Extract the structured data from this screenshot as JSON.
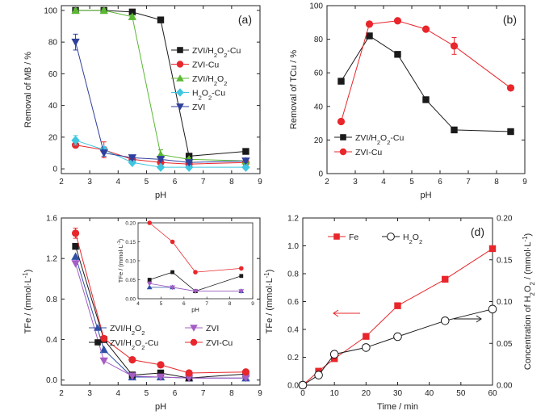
{
  "chart_data": [
    {
      "id": "a",
      "type": "line",
      "panel_label": "(a)",
      "xlabel": "pH",
      "ylabel": "Removal of MB / %",
      "xlim": [
        2,
        9
      ],
      "ylim": [
        -3,
        103
      ],
      "xticks": [
        2,
        3,
        4,
        5,
        6,
        7,
        8,
        9
      ],
      "yticks": [
        0,
        20,
        40,
        60,
        80,
        100
      ],
      "legend_position": "right-center",
      "series": [
        {
          "name": "ZVI/H₂O₂-Cu",
          "color": "#1a1a1a",
          "marker": "square",
          "x": [
            2.5,
            3.5,
            4.5,
            5.5,
            6.5,
            8.5
          ],
          "y": [
            100,
            100,
            99,
            94,
            8,
            11
          ]
        },
        {
          "name": "ZVI-Cu",
          "color": "#e8262b",
          "marker": "circle",
          "x": [
            2.5,
            3.5,
            4.5,
            5.5,
            6.5,
            8.5
          ],
          "y": [
            15,
            12,
            6,
            4,
            3,
            4
          ],
          "err": [
            1,
            5,
            1,
            1,
            1,
            1
          ]
        },
        {
          "name": "ZVI/H₂O₂",
          "color": "#5ab832",
          "marker": "triangle-up",
          "x": [
            2.5,
            3.5,
            4.5,
            5.5,
            6.5,
            8.5
          ],
          "y": [
            100,
            100,
            96,
            9,
            6,
            5
          ],
          "err": [
            1,
            1,
            1,
            3,
            1,
            1
          ]
        },
        {
          "name": "H₂O₂-Cu",
          "color": "#3fc6e0",
          "marker": "diamond",
          "x": [
            2.5,
            3.5,
            4.5,
            5.5,
            6.5,
            8.5
          ],
          "y": [
            18,
            12,
            4,
            1,
            1,
            1
          ],
          "err": [
            3,
            2,
            1,
            1,
            1,
            1
          ]
        },
        {
          "name": "ZVI",
          "color": "#2f3f9c",
          "marker": "triangle-down",
          "x": [
            2.5,
            3.5,
            4.5,
            5.5,
            6.5,
            8.5
          ],
          "y": [
            80,
            10,
            7,
            6,
            4,
            5
          ],
          "err": [
            5,
            2,
            1,
            1,
            1,
            1
          ]
        }
      ]
    },
    {
      "id": "b",
      "type": "line",
      "panel_label": "(b)",
      "xlabel": "pH",
      "ylabel": "Removal of TCu / %",
      "xlim": [
        2,
        9
      ],
      "ylim": [
        0,
        100
      ],
      "xticks": [
        2,
        3,
        4,
        5,
        6,
        7,
        8,
        9
      ],
      "yticks": [
        0,
        20,
        40,
        60,
        80,
        100
      ],
      "legend_position": "bottom-left",
      "series": [
        {
          "name": "ZVI/H₂O₂-Cu",
          "color": "#1a1a1a",
          "marker": "square",
          "x": [
            2.5,
            3.5,
            4.5,
            5.5,
            6.5,
            8.5
          ],
          "y": [
            55,
            82,
            71,
            44,
            26,
            25
          ]
        },
        {
          "name": "ZVI-Cu",
          "color": "#e8262b",
          "marker": "circle",
          "x": [
            2.5,
            3.5,
            4.5,
            5.5,
            6.5,
            8.5
          ],
          "y": [
            31,
            89,
            91,
            86,
            76,
            51
          ],
          "err": [
            0,
            0,
            0,
            0,
            5,
            0
          ]
        }
      ]
    },
    {
      "id": "c",
      "type": "line",
      "panel_label": "(c)",
      "xlabel": "pH",
      "ylabel": "TFe / (mmol·L⁻¹)",
      "xlim": [
        2,
        9
      ],
      "ylim": [
        -0.05,
        1.6
      ],
      "xticks": [
        2,
        3,
        4,
        5,
        6,
        7,
        8,
        9
      ],
      "yticks": [
        0.0,
        0.4,
        0.8,
        1.2,
        1.6
      ],
      "ytick_labels": [
        "0.0",
        "0.4",
        "0.8",
        "1.2",
        "1.6"
      ],
      "legend_position": "bottom-center",
      "series": [
        {
          "name": "ZVI/H₂O₂",
          "color": "#2e4fa6",
          "marker": "triangle-up",
          "x": [
            2.5,
            3.5,
            4.5,
            5.5,
            6.5,
            8.5
          ],
          "y": [
            1.22,
            0.3,
            0.03,
            0.03,
            0.02,
            0.02
          ]
        },
        {
          "name": "ZVI/H₂O₂-Cu",
          "color": "#1a1a1a",
          "marker": "square",
          "x": [
            2.5,
            3.5,
            4.5,
            5.5,
            6.5,
            8.5
          ],
          "y": [
            1.32,
            0.4,
            0.05,
            0.07,
            0.02,
            0.06
          ]
        },
        {
          "name": "ZVI",
          "color": "#a65cc5",
          "marker": "triangle-down",
          "x": [
            2.5,
            3.5,
            4.5,
            5.5,
            6.5,
            8.5
          ],
          "y": [
            1.15,
            0.19,
            0.04,
            0.03,
            0.02,
            0.02
          ]
        },
        {
          "name": "ZVI-Cu",
          "color": "#e8262b",
          "marker": "circle",
          "x": [
            2.5,
            3.5,
            4.5,
            5.5,
            6.5,
            8.5
          ],
          "y": [
            1.45,
            0.41,
            0.2,
            0.15,
            0.07,
            0.08
          ],
          "err": [
            0.05,
            0,
            0,
            0,
            0,
            0
          ]
        }
      ],
      "inset": {
        "xlabel": "pH",
        "ylabel": "TFe / (mmol·L⁻¹)",
        "xlim": [
          4,
          9
        ],
        "ylim": [
          0,
          0.2
        ],
        "xticks": [
          4,
          5,
          6,
          7,
          8,
          9
        ],
        "yticks": [
          0.0,
          0.05,
          0.1,
          0.15,
          0.2
        ],
        "ytick_labels": [
          "0.00",
          "0.05",
          "0.10",
          "0.15",
          "0.20"
        ]
      }
    },
    {
      "id": "d",
      "type": "line",
      "panel_label": "(d)",
      "xlabel": "Time / min",
      "ylabel": "TFe / (mmol·L⁻¹)",
      "y2label": "Concentration of H₂O₂ / (mmol·L⁻¹)",
      "xlim": [
        0,
        60
      ],
      "ylim": [
        0,
        1.2
      ],
      "y2lim": [
        0,
        0.2
      ],
      "xticks": [
        0,
        10,
        20,
        30,
        40,
        50,
        60
      ],
      "yticks": [
        0.0,
        0.2,
        0.4,
        0.6,
        0.8,
        1.0,
        1.2
      ],
      "ytick_labels": [
        "0.0",
        "0.2",
        "0.4",
        "0.6",
        "0.8",
        "1.0",
        "1.2"
      ],
      "y2ticks": [
        0.0,
        0.05,
        0.1,
        0.15,
        0.2
      ],
      "y2tick_labels": [
        "0.00",
        "0.05",
        "0.10",
        "0.15",
        "0.20"
      ],
      "legend_position": "top-left",
      "series": [
        {
          "name": "Fe",
          "color": "#e8262b",
          "marker": "square",
          "axis": "left",
          "x": [
            0,
            5,
            10,
            20,
            30,
            45,
            60
          ],
          "y": [
            0.0,
            0.1,
            0.19,
            0.35,
            0.57,
            0.76,
            0.98
          ]
        },
        {
          "name": "H₂O₂",
          "color": "#1a1a1a",
          "marker": "circle-open",
          "axis": "right",
          "x": [
            0,
            5,
            10,
            20,
            30,
            45,
            60
          ],
          "y": [
            0.0,
            0.012,
            0.037,
            0.045,
            0.058,
            0.077,
            0.091
          ]
        }
      ]
    }
  ]
}
